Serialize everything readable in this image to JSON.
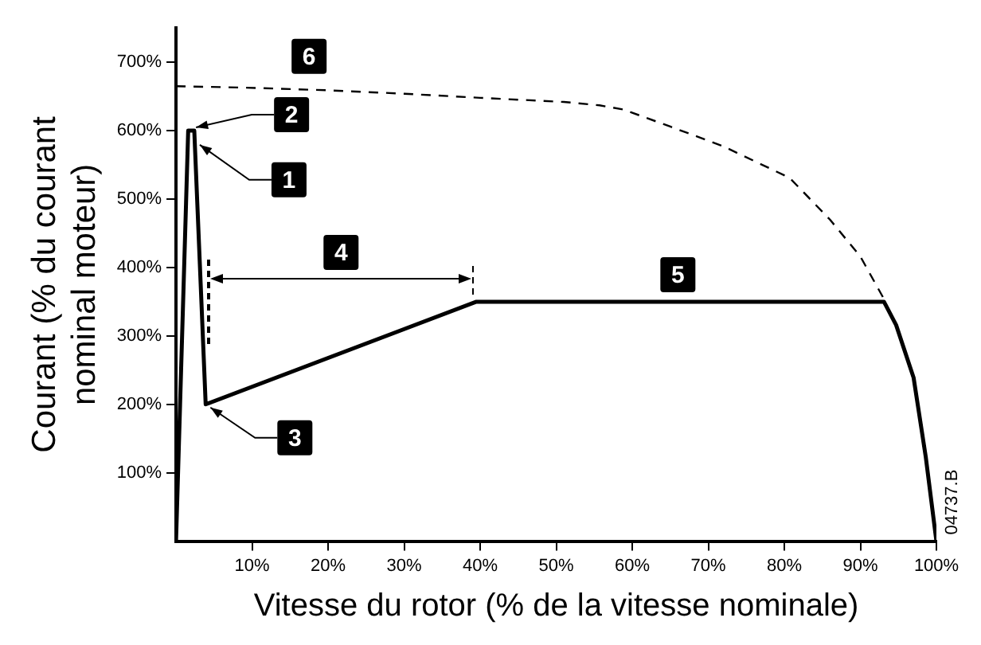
{
  "chart_data": {
    "type": "line",
    "xlabel": "Vitesse du rotor (% de la vitesse nominale)",
    "ylabel": "Courant (% du courant\nnominal moteur)",
    "xlim": [
      0,
      100
    ],
    "ylim": [
      0,
      750
    ],
    "xticks": [
      {
        "value": 10,
        "label": "10%"
      },
      {
        "value": 20,
        "label": "20%"
      },
      {
        "value": 30,
        "label": "30%"
      },
      {
        "value": 40,
        "label": "40%"
      },
      {
        "value": 50,
        "label": "50%"
      },
      {
        "value": 60,
        "label": "60%"
      },
      {
        "value": 70,
        "label": "70%"
      },
      {
        "value": 80,
        "label": "80%"
      },
      {
        "value": 90,
        "label": "90%"
      },
      {
        "value": 100,
        "label": "100%"
      }
    ],
    "yticks": [
      {
        "value": 100,
        "label": "100%"
      },
      {
        "value": 200,
        "label": "200%"
      },
      {
        "value": 300,
        "label": "300%"
      },
      {
        "value": 400,
        "label": "400%"
      },
      {
        "value": 500,
        "label": "500%"
      },
      {
        "value": 600,
        "label": "600%"
      },
      {
        "value": 700,
        "label": "700%"
      }
    ],
    "grid": false,
    "legend": false,
    "series": [
      {
        "color": "#000000",
        "line_style": "solid",
        "x": [
          0,
          1.6,
          2.4,
          3.9,
          39.5,
          93.1,
          94.7,
          97,
          98.6,
          100
        ],
        "values": [
          0,
          600,
          600,
          200,
          350,
          350,
          316,
          239,
          123,
          0
        ]
      },
      {
        "color": "#000000",
        "line_style": "dashed",
        "x": [
          0,
          8.8,
          20,
          30,
          40,
          51,
          55.7,
          58.8,
          65,
          72,
          80.7,
          86,
          90,
          93.1
        ],
        "values": [
          665,
          663,
          659,
          654,
          648,
          642,
          637,
          631,
          606,
          577,
          531,
          470,
          416,
          354
        ]
      }
    ],
    "annotations": [
      {
        "text": "1",
        "x": 2.5,
        "y": 584
      },
      {
        "text": "2",
        "x": 2,
        "y": 600
      },
      {
        "text": "3",
        "x": 3.9,
        "y": 200
      },
      "4",
      {
        "text": "5",
        "x": 66,
        "y": 350
      },
      {
        "text": "6",
        "x": 17.5,
        "y": 662
      },
      "04737.B"
    ]
  }
}
